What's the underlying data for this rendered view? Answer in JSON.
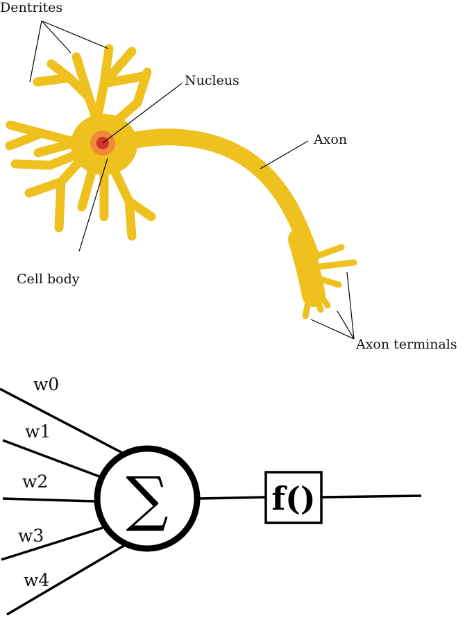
{
  "neuron": {
    "labels": {
      "dentrites": "Dentrites",
      "nucleus": "Nucleus",
      "axon": "Axon",
      "cell_body": "Cell body",
      "axon_terminals": "Axon terminals"
    },
    "colors": {
      "neuron": "#eec11e",
      "nucleus_outer": "#f08a3a",
      "nucleus_inner": "#d0342c"
    }
  },
  "perceptron": {
    "weights": [
      "w0",
      "w1",
      "w2",
      "w3",
      "w4"
    ],
    "sum_symbol": "∑",
    "activation_label": "f()"
  }
}
